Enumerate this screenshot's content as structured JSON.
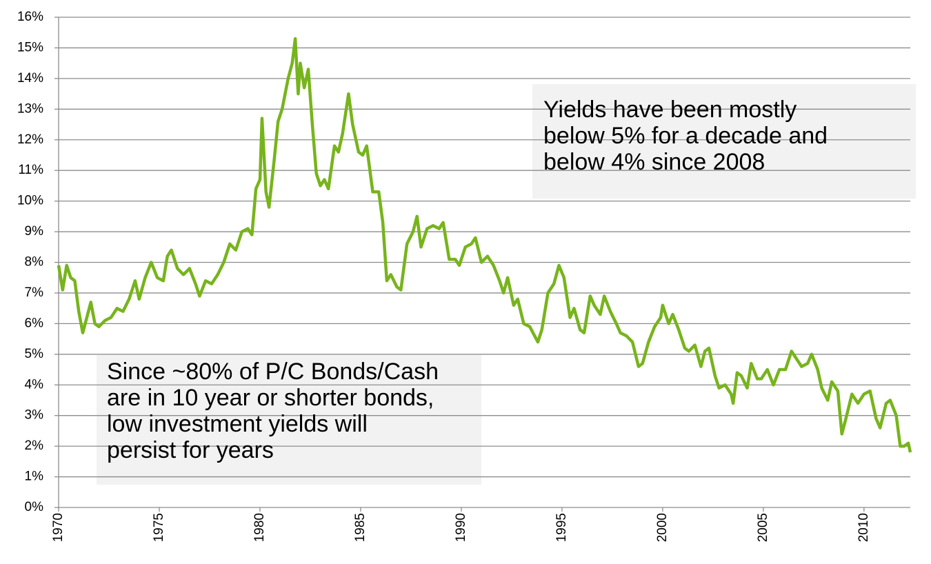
{
  "chart_data": {
    "type": "line",
    "x": [
      1970.0,
      1970.2,
      1970.4,
      1970.6,
      1970.8,
      1971.0,
      1971.2,
      1971.4,
      1971.6,
      1971.8,
      1972.0,
      1972.3,
      1972.6,
      1972.9,
      1973.2,
      1973.5,
      1973.8,
      1974.0,
      1974.3,
      1974.6,
      1974.9,
      1975.2,
      1975.4,
      1975.6,
      1975.9,
      1976.2,
      1976.5,
      1976.8,
      1977.0,
      1977.3,
      1977.6,
      1977.9,
      1978.2,
      1978.5,
      1978.8,
      1979.1,
      1979.4,
      1979.6,
      1979.8,
      1980.0,
      1980.1,
      1980.3,
      1980.45,
      1980.7,
      1980.9,
      1981.1,
      1981.4,
      1981.6,
      1981.75,
      1981.9,
      1982.0,
      1982.2,
      1982.4,
      1982.6,
      1982.8,
      1983.0,
      1983.2,
      1983.4,
      1983.7,
      1983.9,
      1984.1,
      1984.4,
      1984.6,
      1984.9,
      1985.1,
      1985.3,
      1985.6,
      1985.9,
      1986.1,
      1986.3,
      1986.5,
      1986.8,
      1987.0,
      1987.3,
      1987.6,
      1987.8,
      1988.0,
      1988.3,
      1988.6,
      1988.9,
      1989.1,
      1989.4,
      1989.7,
      1989.9,
      1990.2,
      1990.5,
      1990.7,
      1991.0,
      1991.3,
      1991.6,
      1991.9,
      1992.1,
      1992.3,
      1992.6,
      1992.8,
      1993.1,
      1993.4,
      1993.8,
      1994.0,
      1994.3,
      1994.6,
      1994.85,
      1995.1,
      1995.4,
      1995.6,
      1995.9,
      1996.1,
      1996.4,
      1996.6,
      1996.9,
      1997.1,
      1997.4,
      1997.7,
      1997.9,
      1998.2,
      1998.5,
      1998.8,
      1999.0,
      1999.3,
      1999.6,
      1999.9,
      2000.0,
      2000.3,
      2000.5,
      2000.8,
      2001.1,
      2001.3,
      2001.6,
      2001.9,
      2002.1,
      2002.3,
      2002.6,
      2002.8,
      2003.1,
      2003.4,
      2003.5,
      2003.7,
      2003.9,
      2004.2,
      2004.4,
      2004.7,
      2004.9,
      2005.2,
      2005.5,
      2005.8,
      2006.1,
      2006.4,
      2006.7,
      2006.9,
      2007.2,
      2007.4,
      2007.7,
      2007.9,
      2008.2,
      2008.4,
      2008.7,
      2008.9,
      2009.1,
      2009.4,
      2009.7,
      2010.0,
      2010.3,
      2010.6,
      2010.8,
      2011.1,
      2011.3,
      2011.6,
      2011.8,
      2012.0,
      2012.2,
      2012.3
    ],
    "series": [
      {
        "color": "#77b41c",
        "values": [
          7.9,
          7.1,
          7.9,
          7.5,
          7.4,
          6.4,
          5.7,
          6.2,
          6.7,
          6.0,
          5.9,
          6.1,
          6.2,
          6.5,
          6.4,
          6.8,
          7.4,
          6.8,
          7.5,
          8.0,
          7.5,
          7.4,
          8.2,
          8.4,
          7.8,
          7.6,
          7.8,
          7.3,
          6.9,
          7.4,
          7.3,
          7.6,
          8.0,
          8.6,
          8.4,
          9.0,
          9.1,
          8.9,
          10.4,
          10.7,
          12.7,
          10.3,
          9.8,
          11.3,
          12.6,
          13.0,
          14.0,
          14.5,
          15.3,
          13.5,
          14.5,
          13.7,
          14.3,
          12.5,
          10.9,
          10.5,
          10.7,
          10.4,
          11.8,
          11.6,
          12.2,
          13.5,
          12.5,
          11.6,
          11.5,
          11.8,
          10.3,
          10.3,
          9.3,
          7.4,
          7.6,
          7.2,
          7.1,
          8.6,
          9.0,
          9.5,
          8.5,
          9.1,
          9.2,
          9.1,
          9.3,
          8.1,
          8.1,
          7.9,
          8.5,
          8.6,
          8.8,
          8.0,
          8.2,
          7.9,
          7.4,
          7.0,
          7.5,
          6.6,
          6.8,
          6.0,
          5.9,
          5.4,
          5.8,
          7.0,
          7.3,
          7.9,
          7.5,
          6.2,
          6.5,
          5.8,
          5.7,
          6.9,
          6.6,
          6.3,
          6.9,
          6.4,
          6.0,
          5.7,
          5.6,
          5.4,
          4.6,
          4.7,
          5.4,
          5.9,
          6.2,
          6.6,
          6.0,
          6.3,
          5.8,
          5.2,
          5.1,
          5.3,
          4.6,
          5.1,
          5.2,
          4.3,
          3.9,
          4.0,
          3.7,
          3.4,
          4.4,
          4.3,
          3.9,
          4.7,
          4.2,
          4.2,
          4.5,
          4.0,
          4.5,
          4.5,
          5.1,
          4.8,
          4.6,
          4.7,
          5.0,
          4.5,
          3.9,
          3.5,
          4.1,
          3.8,
          2.4,
          2.9,
          3.7,
          3.4,
          3.7,
          3.8,
          2.9,
          2.6,
          3.4,
          3.5,
          3.0,
          2.0,
          2.0,
          2.1,
          1.8
        ]
      }
    ],
    "xlim": [
      1970,
      2012.3
    ],
    "xticks": [
      1970,
      1975,
      1980,
      1985,
      1990,
      1995,
      2000,
      2005,
      2010
    ],
    "ylim": [
      0,
      16
    ],
    "yticks": [
      {
        "value": 0,
        "label": "0%"
      },
      {
        "value": 1,
        "label": "1%"
      },
      {
        "value": 2,
        "label": "2%"
      },
      {
        "value": 3,
        "label": "3%"
      },
      {
        "value": 4,
        "label": "4%"
      },
      {
        "value": 5,
        "label": "5%"
      },
      {
        "value": 6,
        "label": "6%"
      },
      {
        "value": 7,
        "label": "7%"
      },
      {
        "value": 8,
        "label": "8%"
      },
      {
        "value": 9,
        "label": "9%"
      },
      {
        "value": 10,
        "label": "10%"
      },
      {
        "value": 11,
        "label": "11%"
      },
      {
        "value": 12,
        "label": "12%"
      },
      {
        "value": 13,
        "label": "13%"
      },
      {
        "value": 14,
        "label": "14%"
      },
      {
        "value": 15,
        "label": "15%"
      },
      {
        "value": 16,
        "label": "16%"
      }
    ],
    "grid": true,
    "annotations": [
      {
        "lines": [
          "Yields have been mostly",
          "below 5% for a decade and",
          "below 4% since 2008"
        ]
      },
      {
        "lines": [
          "Since ~80% of P/C Bonds/Cash",
          "are in 10 year or shorter bonds,",
          "low investment yields will",
          "persist for years"
        ]
      }
    ]
  }
}
